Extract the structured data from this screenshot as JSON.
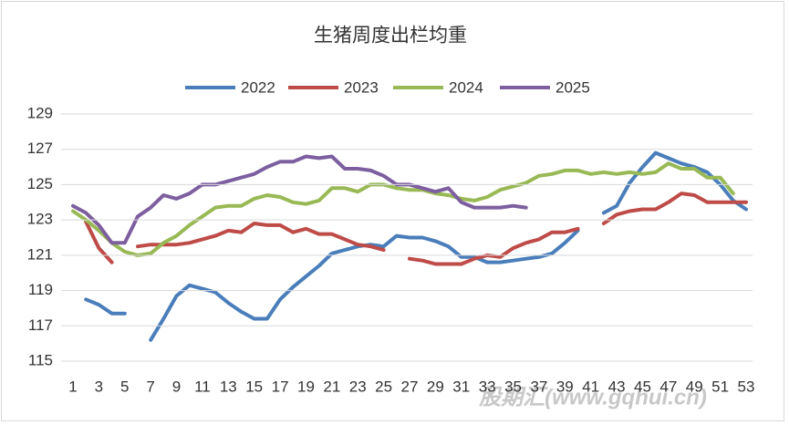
{
  "chart_data": {
    "type": "line",
    "title": "生猪周度出栏均重",
    "categories": [
      1,
      null,
      3,
      null,
      5,
      null,
      7,
      null,
      9,
      null,
      11,
      null,
      13,
      null,
      15,
      null,
      17,
      null,
      19,
      null,
      21,
      null,
      23,
      null,
      25,
      null,
      27,
      null,
      29,
      null,
      31,
      null,
      33,
      null,
      35,
      null,
      37,
      null,
      39,
      null,
      41,
      null,
      43,
      null,
      45,
      null,
      47,
      null,
      49,
      null,
      51,
      null,
      53
    ],
    "ylim": [
      115,
      129
    ],
    "yticks": [
      115,
      117,
      119,
      121,
      123,
      125,
      127,
      129
    ],
    "grid": true,
    "legend": "top",
    "series": [
      {
        "name": "2022",
        "color": "#4a7ebb",
        "values": [
          null,
          118.5,
          118.2,
          117.7,
          117.7,
          null,
          116.2,
          117.4,
          118.7,
          119.3,
          119.1,
          118.9,
          118.3,
          117.8,
          117.4,
          117.4,
          118.5,
          119.2,
          119.8,
          120.4,
          121.1,
          121.3,
          121.5,
          121.6,
          121.5,
          122.1,
          122.0,
          122.0,
          121.8,
          121.5,
          120.9,
          120.9,
          120.6,
          120.6,
          120.7,
          120.8,
          120.9,
          121.1,
          121.7,
          122.4,
          null,
          123.4,
          123.8,
          125.1,
          126.0,
          126.8,
          126.5,
          126.2,
          126.0,
          125.7,
          125.0,
          124.1,
          123.6
        ]
      },
      {
        "name": "2023",
        "color": "#be4b48",
        "values": [
          null,
          122.9,
          121.4,
          120.6,
          null,
          121.5,
          121.6,
          121.6,
          121.6,
          121.7,
          121.9,
          122.1,
          122.4,
          122.3,
          122.8,
          122.7,
          122.7,
          122.3,
          122.5,
          122.2,
          122.2,
          121.9,
          121.6,
          121.5,
          121.3,
          null,
          120.8,
          120.7,
          120.5,
          120.5,
          120.5,
          120.8,
          121.0,
          120.9,
          121.4,
          121.7,
          121.9,
          122.3,
          122.3,
          122.5,
          null,
          122.8,
          123.3,
          123.5,
          123.6,
          123.6,
          124.0,
          124.5,
          124.4,
          124.0,
          124.0,
          124.0,
          124.0
        ]
      },
      {
        "name": "2024",
        "color": "#98b954",
        "values": [
          123.5,
          123.0,
          122.4,
          121.7,
          121.2,
          121.0,
          121.1,
          121.7,
          122.1,
          122.7,
          123.2,
          123.7,
          123.8,
          123.8,
          124.2,
          124.4,
          124.3,
          124.0,
          123.9,
          124.1,
          124.8,
          124.8,
          124.6,
          125.0,
          125.0,
          124.8,
          124.7,
          124.7,
          124.5,
          124.4,
          124.2,
          124.1,
          124.3,
          124.7,
          124.9,
          125.1,
          125.5,
          125.6,
          125.8,
          125.8,
          125.6,
          125.7,
          125.6,
          125.7,
          125.6,
          125.7,
          126.2,
          125.9,
          125.9,
          125.4,
          125.4,
          124.5,
          null
        ]
      },
      {
        "name": "2025",
        "color": "#7d5fa0",
        "values": [
          123.8,
          123.4,
          122.7,
          121.7,
          121.7,
          123.2,
          123.7,
          124.4,
          124.2,
          124.5,
          125.0,
          125.0,
          125.2,
          125.4,
          125.6,
          126.0,
          126.3,
          126.3,
          126.6,
          126.5,
          126.6,
          125.9,
          125.9,
          125.8,
          125.5,
          125.0,
          125.0,
          124.8,
          124.6,
          124.8,
          124.0,
          123.7,
          123.7,
          123.7,
          123.8,
          123.7,
          null,
          null,
          null,
          null,
          null,
          null,
          null,
          null,
          null,
          null,
          null,
          null,
          null,
          null,
          null,
          null,
          null
        ]
      }
    ]
  },
  "watermark": "股期汇(www.gqhui.cn)"
}
